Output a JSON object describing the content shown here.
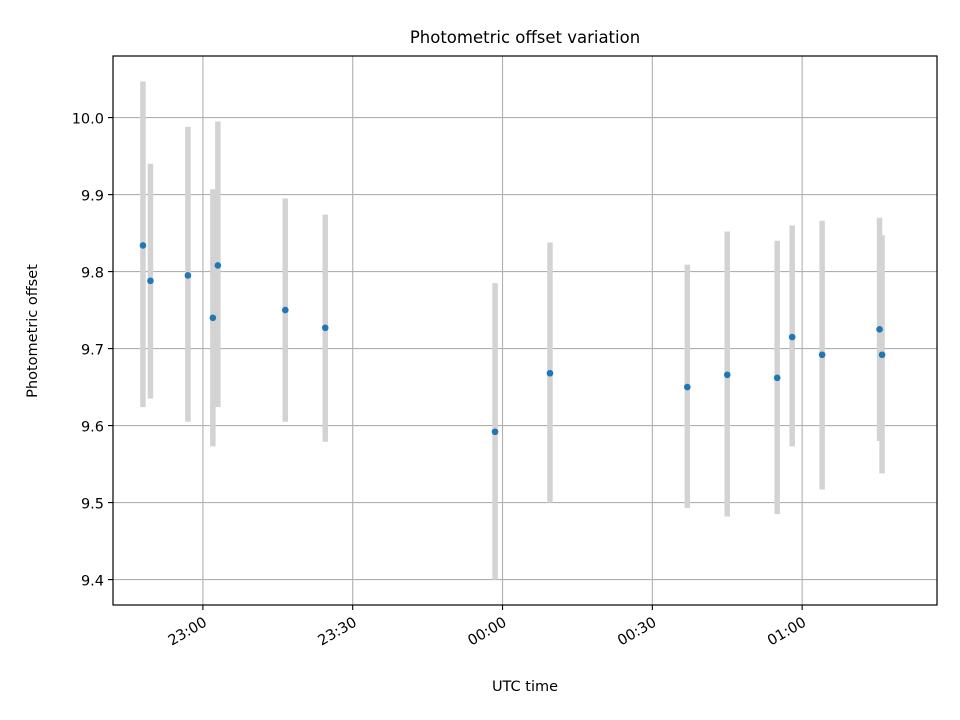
{
  "chart_data": {
    "type": "scatter",
    "title": "Photometric offset variation",
    "xlabel": "UTC time",
    "ylabel": "Photometric offset",
    "x_unit": "UTC time",
    "xlim": [
      "22:42",
      "01:27"
    ],
    "ylim": [
      9.367,
      10.08
    ],
    "grid": true,
    "x_ticks": [
      "23:00",
      "23:30",
      "00:00",
      "00:30",
      "01:00"
    ],
    "y_ticks": [
      "9.4",
      "9.5",
      "9.6",
      "9.7",
      "9.8",
      "9.9",
      "10.0"
    ],
    "colors": {
      "point": "#1f77b4",
      "errorbar": "#d3d3d3",
      "grid": "#b0b0b0"
    },
    "series": [
      {
        "points": [
          {
            "x": "22:48",
            "y": 9.834,
            "ymin": 9.624,
            "ymax": 10.047
          },
          {
            "x": "22:49.5",
            "y": 9.788,
            "ymin": 9.635,
            "ymax": 9.94
          },
          {
            "x": "22:57",
            "y": 9.795,
            "ymin": 9.605,
            "ymax": 9.988
          },
          {
            "x": "23:02",
            "y": 9.74,
            "ymin": 9.573,
            "ymax": 9.907
          },
          {
            "x": "23:03",
            "y": 9.808,
            "ymin": 9.624,
            "ymax": 9.995
          },
          {
            "x": "23:16.5",
            "y": 9.75,
            "ymin": 9.605,
            "ymax": 9.895
          },
          {
            "x": "23:24.5",
            "y": 9.727,
            "ymin": 9.579,
            "ymax": 9.874
          },
          {
            "x": "23:58.5",
            "y": 9.592,
            "ymin": 9.4,
            "ymax": 9.785
          },
          {
            "x": "00:09.5",
            "y": 9.668,
            "ymin": 9.5,
            "ymax": 9.838
          },
          {
            "x": "00:37",
            "y": 9.65,
            "ymin": 9.493,
            "ymax": 9.809
          },
          {
            "x": "00:45",
            "y": 9.666,
            "ymin": 9.482,
            "ymax": 9.852
          },
          {
            "x": "00:55",
            "y": 9.662,
            "ymin": 9.485,
            "ymax": 9.84
          },
          {
            "x": "00:58",
            "y": 9.715,
            "ymin": 9.573,
            "ymax": 9.86
          },
          {
            "x": "01:04",
            "y": 9.692,
            "ymin": 9.517,
            "ymax": 9.866
          },
          {
            "x": "01:15.5",
            "y": 9.725,
            "ymin": 9.58,
            "ymax": 9.87
          },
          {
            "x": "01:16",
            "y": 9.692,
            "ymin": 9.538,
            "ymax": 9.847
          }
        ]
      }
    ]
  }
}
